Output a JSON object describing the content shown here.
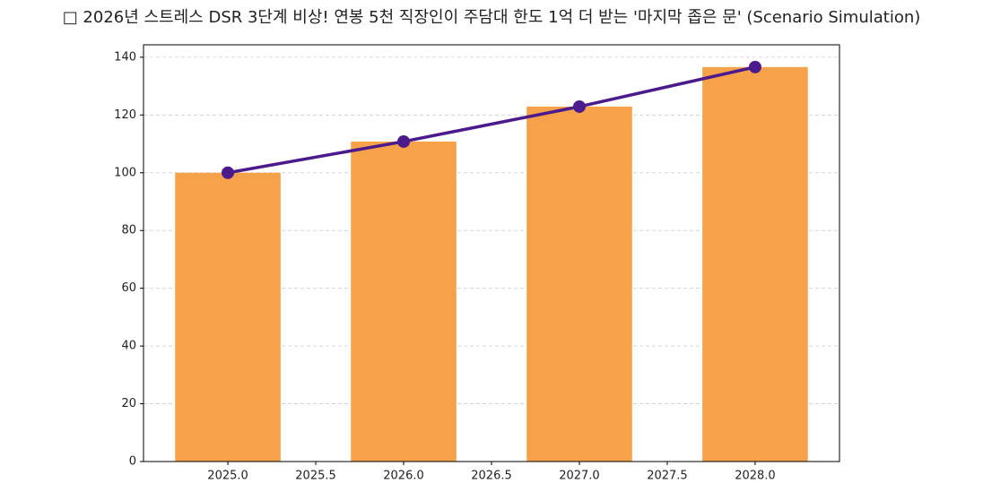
{
  "chart_data": {
    "type": "bar",
    "title": "□ 2026년 스트레스 DSR 3단계 비상! 연봉 5천 직장인이 주담대 한도 1억 더 받는 '마지막 좁은 문' (Scenario Simulation)",
    "x": [
      2025,
      2026,
      2027,
      2028
    ],
    "series": [
      {
        "type": "bar",
        "color": "#f5a24b",
        "values": [
          100,
          110.8,
          122.9,
          136.6
        ]
      },
      {
        "type": "line",
        "color": "#4b1a8c",
        "values": [
          100,
          110.8,
          122.9,
          136.6
        ]
      }
    ],
    "bar_width": 0.6,
    "xlim": [
      2024.52,
      2028.48
    ],
    "xticks": [
      {
        "value": 2025,
        "label": "2025.0"
      },
      2025.5,
      {
        "value": 2026,
        "label": "2026.0"
      },
      2026.5,
      {
        "value": 2027,
        "label": "2027.0"
      },
      2027.5,
      {
        "value": 2028,
        "label": "2028.0"
      }
    ],
    "ylim": [
      0,
      144.3
    ],
    "yticks": [
      0,
      20,
      40,
      60,
      80,
      100,
      120,
      140
    ],
    "grid": true
  }
}
